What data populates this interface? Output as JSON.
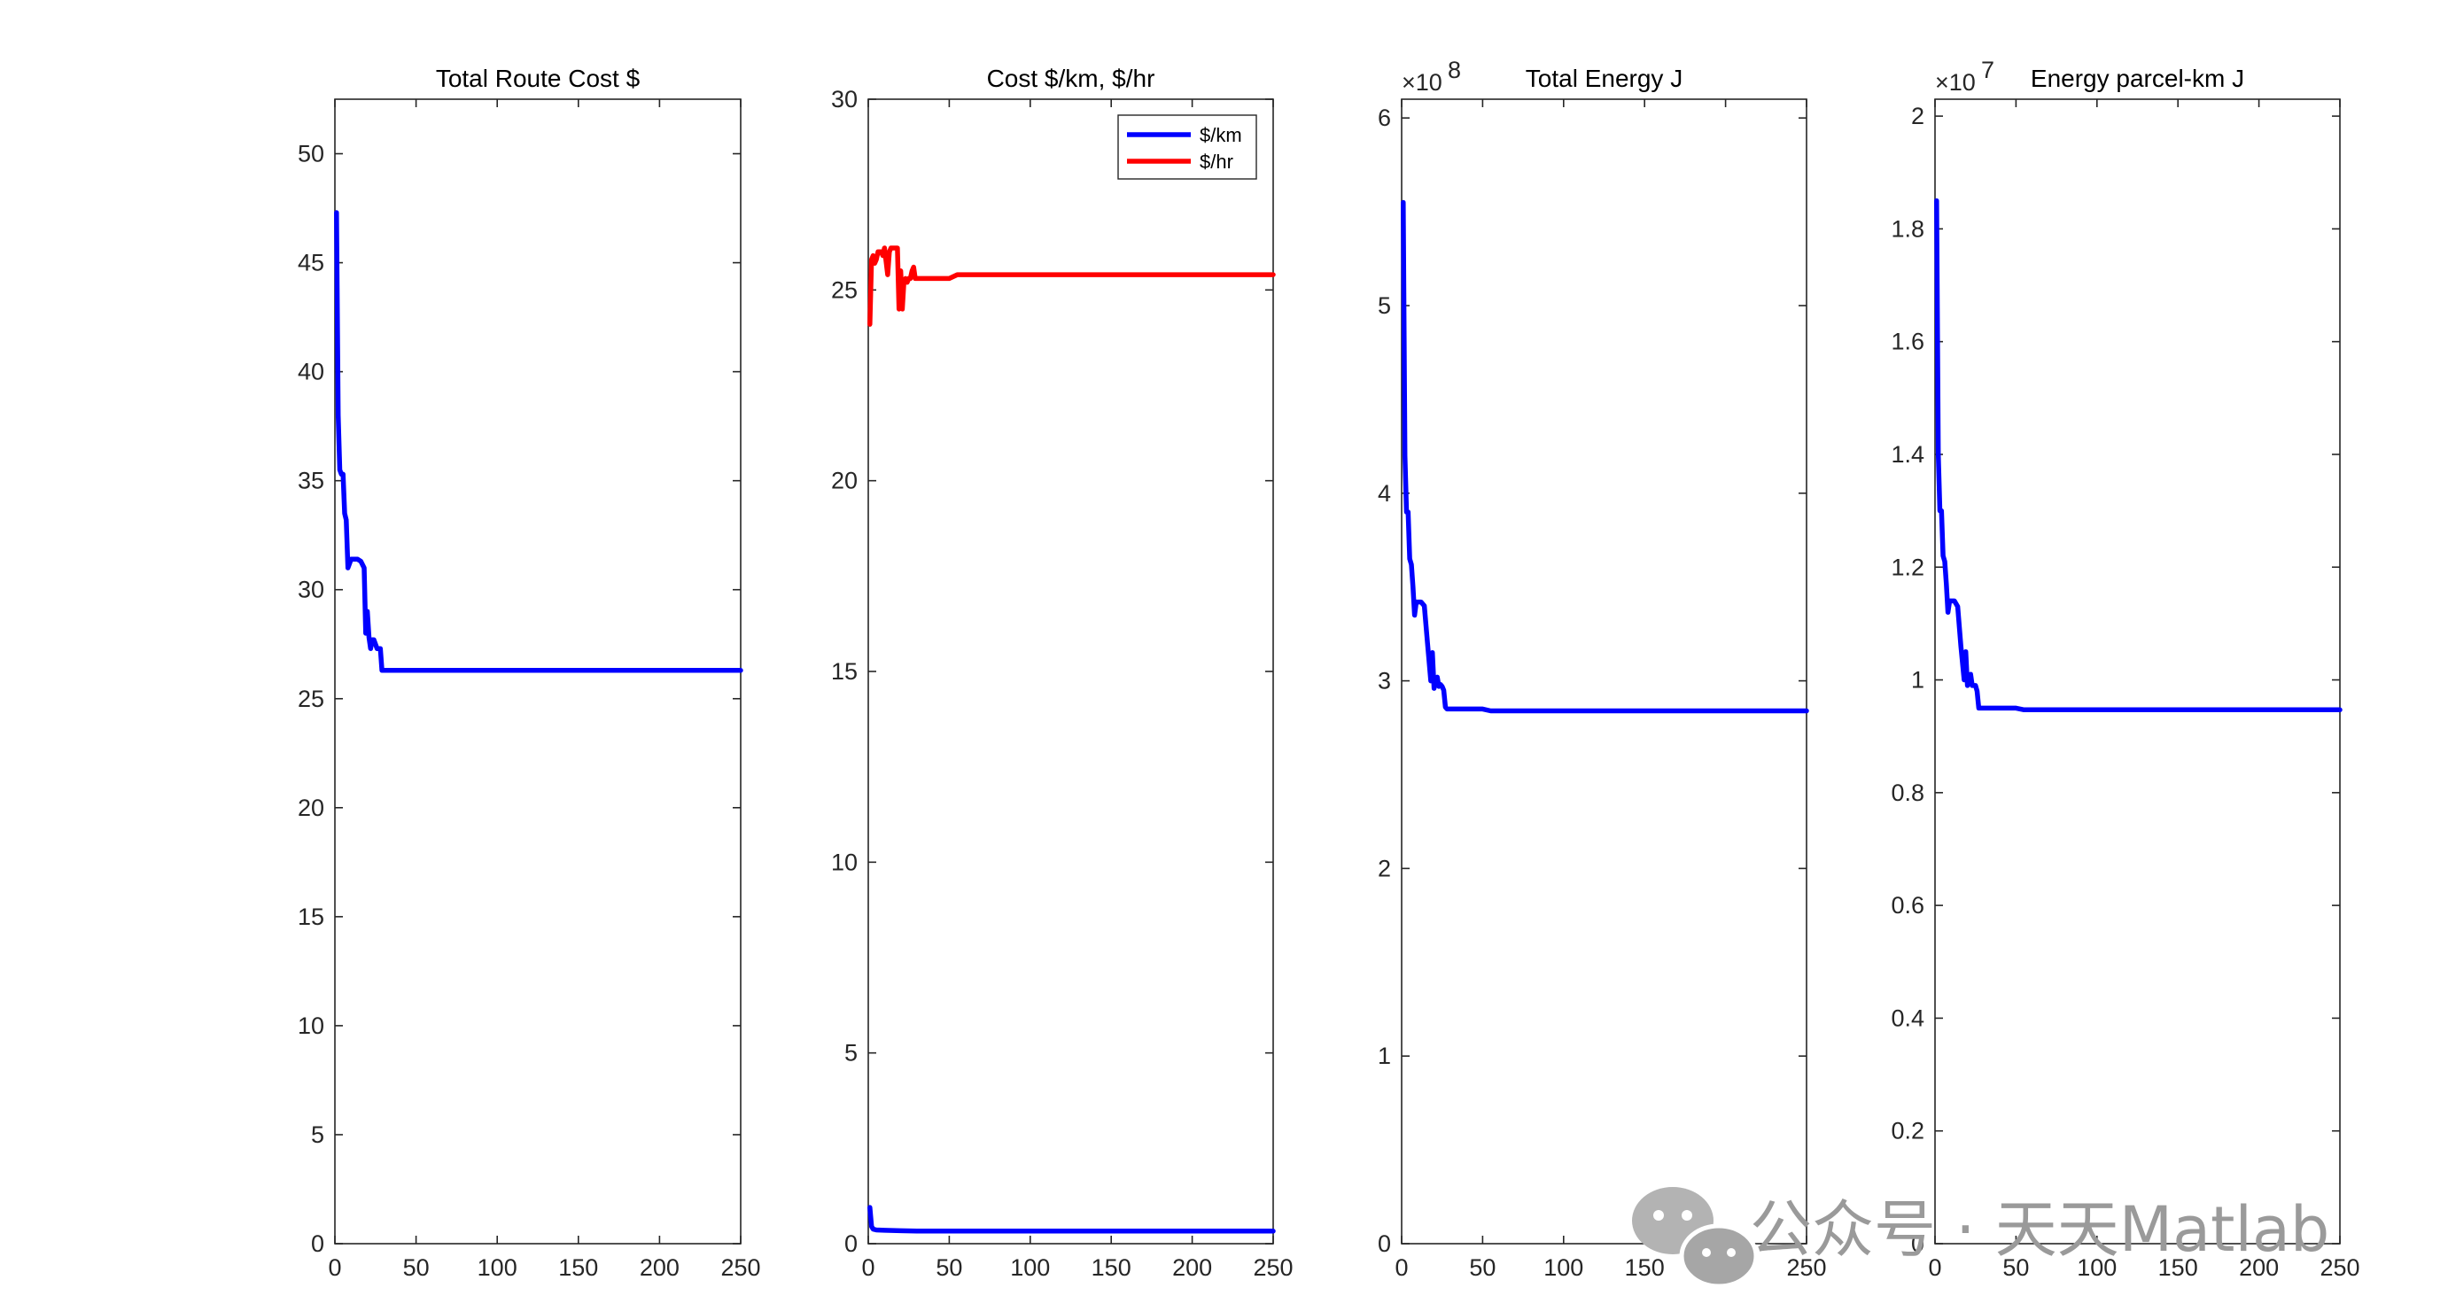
{
  "watermark": "公众号 · 天天Matlab",
  "chart_data": [
    {
      "type": "line",
      "title": "Total Route Cost $",
      "xlabel": "",
      "ylabel": "",
      "xlim": [
        0,
        250
      ],
      "ylim": [
        0,
        52.5
      ],
      "xticks": [
        0,
        50,
        100,
        150,
        200,
        250
      ],
      "yticks": [
        0,
        5,
        10,
        15,
        20,
        25,
        30,
        35,
        40,
        45,
        50
      ],
      "exponent": "",
      "exponent_power": "",
      "grid": false,
      "series": [
        {
          "color": "#0000ff",
          "x": [
            1,
            2,
            3,
            4,
            5,
            6,
            7,
            8,
            9,
            10,
            11,
            12,
            13,
            14,
            16,
            18,
            19,
            20,
            21,
            22,
            23,
            24,
            25,
            26,
            27,
            28,
            29,
            30,
            32,
            33,
            34,
            40,
            50,
            80,
            120,
            150,
            180,
            200,
            230,
            250
          ],
          "y": [
            47.3,
            38.0,
            35.5,
            35.3,
            35.3,
            33.5,
            33.2,
            31.0,
            31.2,
            31.4,
            31.4,
            31.4,
            31.4,
            31.4,
            31.3,
            31.0,
            28.0,
            29.0,
            27.8,
            27.3,
            27.7,
            27.7,
            27.5,
            27.3,
            27.3,
            27.3,
            26.3,
            26.3,
            26.3,
            26.3,
            26.3,
            26.3,
            26.3,
            26.3,
            26.3,
            26.3,
            26.3,
            26.3,
            26.3,
            26.3
          ]
        }
      ]
    },
    {
      "type": "line",
      "title": "Cost $/km, $/hr",
      "xlabel": "",
      "ylabel": "",
      "xlim": [
        0,
        250
      ],
      "ylim": [
        0,
        30
      ],
      "xticks": [
        0,
        50,
        100,
        150,
        200,
        250
      ],
      "yticks": [
        0,
        5,
        10,
        15,
        20,
        25,
        30
      ],
      "exponent": "",
      "exponent_power": "",
      "grid": false,
      "legend_position": "top-right",
      "series": [
        {
          "name": "$/km",
          "color": "#0000ff",
          "x": [
            1,
            2,
            3,
            5,
            10,
            20,
            30,
            50,
            100,
            150,
            200,
            250
          ],
          "y": [
            0.95,
            0.45,
            0.38,
            0.36,
            0.35,
            0.34,
            0.33,
            0.33,
            0.33,
            0.33,
            0.33,
            0.33
          ]
        },
        {
          "name": "$/hr",
          "color": "#ff0000",
          "x": [
            1,
            2,
            3,
            4,
            5,
            6,
            8,
            9,
            10,
            12,
            13,
            14,
            15,
            18,
            19,
            20,
            21,
            22,
            23,
            24,
            25,
            26,
            27,
            28,
            29,
            30,
            32,
            35,
            40,
            50,
            55,
            60,
            100,
            150,
            200,
            250
          ],
          "y": [
            24.1,
            25.8,
            25.9,
            25.7,
            25.8,
            26.0,
            26.0,
            25.9,
            26.1,
            25.4,
            26.0,
            26.1,
            26.1,
            26.1,
            24.5,
            25.5,
            24.5,
            25.2,
            25.3,
            25.2,
            25.3,
            25.3,
            25.5,
            25.6,
            25.3,
            25.3,
            25.3,
            25.3,
            25.3,
            25.3,
            25.4,
            25.4,
            25.4,
            25.4,
            25.4,
            25.4
          ]
        }
      ]
    },
    {
      "type": "line",
      "title": "Total Energy J",
      "xlabel": "",
      "ylabel": "",
      "xlim": [
        0,
        250
      ],
      "ylim": [
        0,
        6.1
      ],
      "xticks": [
        0,
        50,
        100,
        150,
        200,
        250
      ],
      "yticks": [
        0,
        1,
        2,
        3,
        4,
        5,
        6
      ],
      "exponent": "×10",
      "exponent_power": "8",
      "grid": false,
      "series": [
        {
          "color": "#0000ff",
          "x": [
            1,
            2,
            3,
            4,
            5,
            6,
            7,
            8,
            9,
            10,
            12,
            14,
            16,
            18,
            19,
            20,
            21,
            22,
            23,
            24,
            25,
            26,
            27,
            28,
            29,
            30,
            32,
            35,
            40,
            50,
            55,
            60,
            100,
            150,
            200,
            250
          ],
          "y": [
            5.55,
            4.2,
            3.9,
            3.9,
            3.65,
            3.62,
            3.5,
            3.35,
            3.42,
            3.42,
            3.42,
            3.4,
            3.2,
            3.0,
            3.15,
            2.96,
            3.0,
            3.02,
            2.97,
            2.98,
            2.97,
            2.95,
            2.86,
            2.85,
            2.85,
            2.85,
            2.85,
            2.85,
            2.85,
            2.85,
            2.84,
            2.84,
            2.84,
            2.84,
            2.84,
            2.84
          ]
        }
      ]
    },
    {
      "type": "line",
      "title": "Energy parcel-km J",
      "xlabel": "",
      "ylabel": "",
      "xlim": [
        0,
        250
      ],
      "ylim": [
        0,
        2.03
      ],
      "xticks": [
        0,
        50,
        100,
        150,
        200,
        250
      ],
      "yticks": [
        0,
        0.2,
        0.4,
        0.6,
        0.8,
        1,
        1.2,
        1.4,
        1.6,
        1.8,
        2
      ],
      "exponent": "×10",
      "exponent_power": "7",
      "grid": false,
      "series": [
        {
          "color": "#0000ff",
          "x": [
            1,
            2,
            3,
            4,
            5,
            6,
            7,
            8,
            9,
            10,
            12,
            14,
            16,
            18,
            19,
            20,
            21,
            22,
            23,
            24,
            25,
            26,
            27,
            28,
            29,
            30,
            32,
            35,
            40,
            50,
            55,
            60,
            100,
            150,
            200,
            250
          ],
          "y": [
            1.85,
            1.4,
            1.3,
            1.3,
            1.22,
            1.21,
            1.17,
            1.12,
            1.14,
            1.14,
            1.14,
            1.13,
            1.06,
            1.0,
            1.05,
            0.99,
            1.0,
            1.01,
            0.99,
            0.99,
            0.99,
            0.98,
            0.95,
            0.95,
            0.95,
            0.95,
            0.95,
            0.95,
            0.95,
            0.95,
            0.947,
            0.947,
            0.947,
            0.947,
            0.947,
            0.947
          ]
        }
      ]
    }
  ]
}
